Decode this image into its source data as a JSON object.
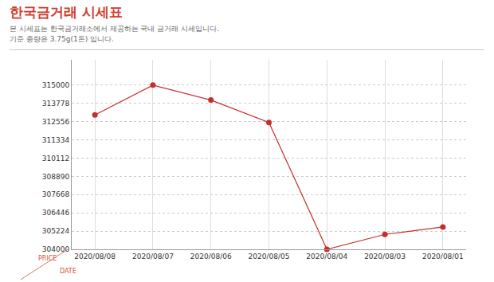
{
  "chart_data": {
    "type": "line",
    "title": "한국금거래 시세표",
    "subtitle": [
      "본 시세표는 한국금거래소에서 제공하는 국내 금거래 시세입니다.",
      "기준 중량은 3.75g(1돈) 입니다."
    ],
    "x_label": "DATE",
    "y_label": "PRICE",
    "categories": [
      "2020/08/08",
      "2020/08/07",
      "2020/08/06",
      "2020/08/05",
      "2020/08/04",
      "2020/08/03",
      "2020/08/01"
    ],
    "values": [
      313000,
      315000,
      314000,
      312500,
      304000,
      305000,
      305500
    ],
    "color": "#c62d2d",
    "marker": "circle",
    "ylim": [
      304000,
      316700
    ],
    "yticks": [
      304000,
      305224,
      306446,
      307668,
      308890,
      310112,
      311334,
      312556,
      313778,
      315000
    ],
    "grid": true
  }
}
